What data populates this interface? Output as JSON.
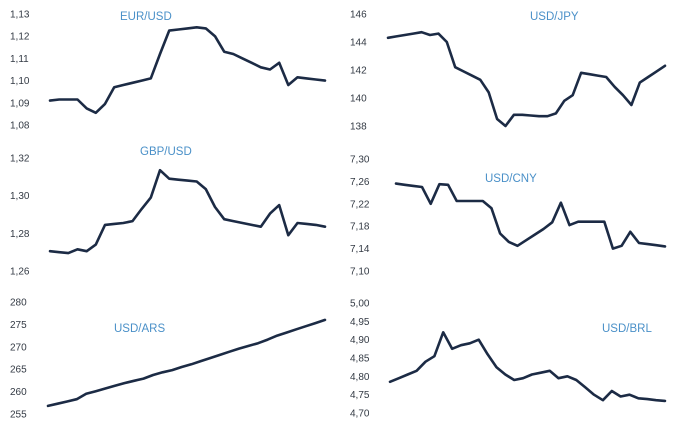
{
  "colors": {
    "line": "#1c2b45",
    "title": "#4a90c8",
    "tick": "#333a44"
  },
  "chart_data": [
    {
      "type": "line",
      "title": "EUR/USD",
      "ylim": [
        1.08,
        1.13
      ],
      "yticks": [
        "1,13",
        "1,12",
        "1,11",
        "1,10",
        "1,09",
        "1,08"
      ],
      "grid": false,
      "values": [
        1.091,
        1.0915,
        1.0915,
        1.0915,
        1.0875,
        1.0855,
        1.0895,
        1.097,
        1.098,
        1.099,
        1.1,
        1.101,
        1.112,
        1.1225,
        1.123,
        1.1235,
        1.124,
        1.1235,
        1.12,
        1.113,
        1.112,
        1.11,
        1.108,
        1.106,
        1.105,
        1.108,
        1.098,
        1.1015,
        1.101,
        1.1005,
        1.1
      ]
    },
    {
      "type": "line",
      "title": "USD/JPY",
      "ylim": [
        138,
        146
      ],
      "yticks": [
        "146",
        "144",
        "142",
        "140",
        "138"
      ],
      "grid": false,
      "values": [
        144.3,
        144.4,
        144.5,
        144.6,
        144.7,
        144.5,
        144.6,
        144.0,
        142.2,
        141.9,
        141.6,
        141.3,
        140.4,
        138.5,
        138.0,
        138.8,
        138.8,
        138.75,
        138.7,
        138.7,
        138.9,
        139.8,
        140.2,
        141.8,
        141.7,
        141.6,
        141.5,
        140.8,
        140.2,
        139.5,
        141.1,
        141.5,
        141.9,
        142.3
      ]
    },
    {
      "type": "line",
      "title": "GBP/USD",
      "ylim": [
        1.26,
        1.32
      ],
      "yticks": [
        "1,32",
        "1,30",
        "1,28",
        "1,26"
      ],
      "grid": false,
      "values": [
        1.2705,
        1.27,
        1.2695,
        1.2715,
        1.2705,
        1.274,
        1.2845,
        1.285,
        1.2855,
        1.2865,
        1.293,
        1.299,
        1.3135,
        1.309,
        1.3085,
        1.308,
        1.3075,
        1.3035,
        1.294,
        1.2875,
        1.2865,
        1.2855,
        1.2845,
        1.2835,
        1.2905,
        1.295,
        1.279,
        1.2855,
        1.285,
        1.2845,
        1.2835
      ]
    },
    {
      "type": "line",
      "title": "USD/CNY",
      "ylim": [
        7.1,
        7.3
      ],
      "yticks": [
        "7,30",
        "7,26",
        "7,22",
        "7,18",
        "7,14",
        "7,10"
      ],
      "grid": false,
      "values": [
        7.256,
        7.254,
        7.252,
        7.25,
        7.22,
        7.255,
        7.254,
        7.225,
        7.225,
        7.225,
        7.225,
        7.212,
        7.167,
        7.152,
        7.145,
        7.155,
        7.165,
        7.175,
        7.187,
        7.222,
        7.182,
        7.188,
        7.188,
        7.188,
        7.188,
        7.14,
        7.145,
        7.17,
        7.15,
        7.148,
        7.146,
        7.144
      ]
    },
    {
      "type": "line",
      "title": "USD/ARS",
      "ylim": [
        255,
        280
      ],
      "yticks": [
        "280",
        "275",
        "270",
        "265",
        "260",
        "255"
      ],
      "grid": false,
      "values": [
        256.8,
        257.3,
        257.8,
        258.3,
        259.5,
        260.1,
        260.7,
        261.3,
        261.9,
        262.4,
        262.9,
        263.7,
        264.3,
        264.8,
        265.5,
        266.1,
        266.8,
        267.5,
        268.2,
        268.9,
        269.6,
        270.2,
        270.8,
        271.6,
        272.5,
        273.2,
        273.9,
        274.6,
        275.3,
        276.0
      ]
    },
    {
      "type": "line",
      "title": "USD/BRL",
      "ylim": [
        4.7,
        5.0
      ],
      "yticks": [
        "5,00",
        "4,95",
        "4,90",
        "4,85",
        "4,80",
        "4,75",
        "4,70"
      ],
      "grid": false,
      "values": [
        4.785,
        4.795,
        4.805,
        4.815,
        4.84,
        4.855,
        4.92,
        4.875,
        4.885,
        4.89,
        4.9,
        4.86,
        4.825,
        4.805,
        4.79,
        4.795,
        4.805,
        4.81,
        4.815,
        4.795,
        4.8,
        4.79,
        4.77,
        4.75,
        4.735,
        4.76,
        4.745,
        4.75,
        4.74,
        4.738,
        4.735,
        4.733
      ]
    }
  ]
}
